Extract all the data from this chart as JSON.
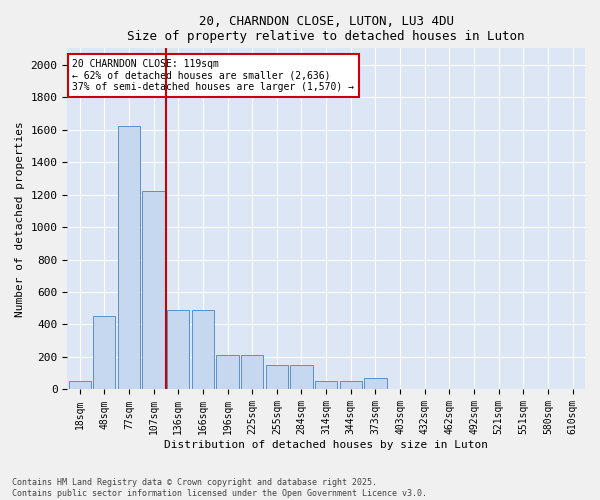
{
  "title": "20, CHARNDON CLOSE, LUTON, LU3 4DU",
  "subtitle": "Size of property relative to detached houses in Luton",
  "xlabel": "Distribution of detached houses by size in Luton",
  "ylabel": "Number of detached properties",
  "categories": [
    "18sqm",
    "48sqm",
    "77sqm",
    "107sqm",
    "136sqm",
    "166sqm",
    "196sqm",
    "225sqm",
    "255sqm",
    "284sqm",
    "314sqm",
    "344sqm",
    "373sqm",
    "403sqm",
    "432sqm",
    "462sqm",
    "492sqm",
    "521sqm",
    "551sqm",
    "580sqm",
    "610sqm"
  ],
  "values": [
    50,
    450,
    1620,
    1220,
    490,
    490,
    215,
    215,
    150,
    150,
    50,
    50,
    70,
    0,
    0,
    0,
    0,
    0,
    0,
    0,
    0
  ],
  "bar_color": "#c5d8f0",
  "bar_edge_color": "#5b8fc9",
  "bg_color": "#dce6f5",
  "grid_color": "#ffffff",
  "vline_color": "#cc0000",
  "vline_pos": 3.5,
  "annotation_text": "20 CHARNDON CLOSE: 119sqm\n← 62% of detached houses are smaller (2,636)\n37% of semi-detached houses are larger (1,570) →",
  "annotation_box_color": "#ffffff",
  "annotation_box_edge": "#cc0000",
  "footer": "Contains HM Land Registry data © Crown copyright and database right 2025.\nContains public sector information licensed under the Open Government Licence v3.0.",
  "ylim": [
    0,
    2100
  ],
  "yticks": [
    0,
    200,
    400,
    600,
    800,
    1000,
    1200,
    1400,
    1600,
    1800,
    2000
  ],
  "fig_bg": "#f0f0f0"
}
